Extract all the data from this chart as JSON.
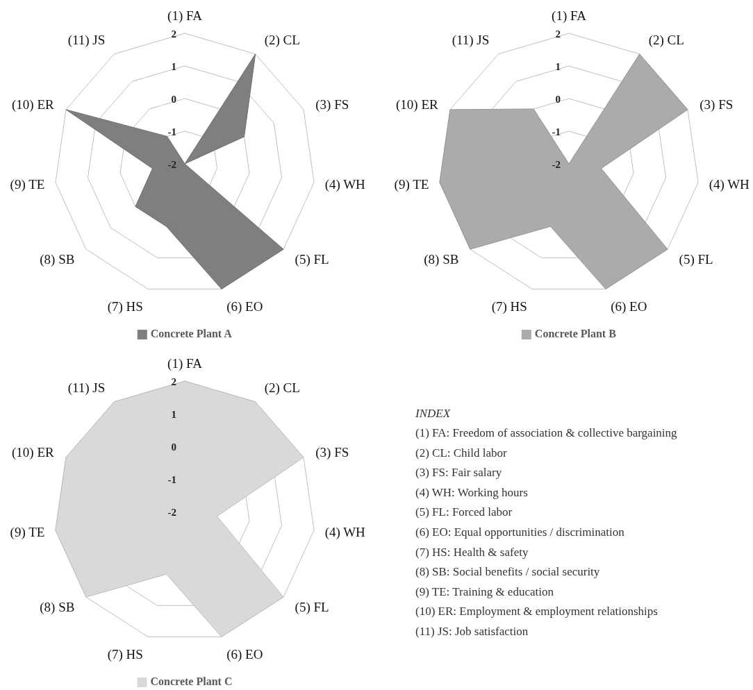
{
  "chart_data": [
    {
      "type": "radar",
      "categories": [
        "(1) FA",
        "(2) CL",
        "(3) FS",
        "(4) WH",
        "(5) FL",
        "(6) EO",
        "(7) HS",
        "(8) SB",
        "(9) TE",
        "(10) ER",
        "(11) JS"
      ],
      "series": [
        {
          "name": "Concrete Plant A",
          "color": "#7f7f7f",
          "values": [
            -2,
            2,
            0,
            -2,
            2,
            2,
            0,
            0,
            -1,
            2,
            -1
          ]
        }
      ],
      "ylim": [
        -2,
        2
      ],
      "yticks": [
        -2,
        -1,
        0,
        1,
        2
      ],
      "grid": true,
      "legend": "bottom"
    },
    {
      "type": "radar",
      "categories": [
        "(1) FA",
        "(2) CL",
        "(3) FS",
        "(4) WH",
        "(5) FL",
        "(6) EO",
        "(7) HS",
        "(8) SB",
        "(9) TE",
        "(10) ER",
        "(11) JS"
      ],
      "series": [
        {
          "name": "Concrete Plant B",
          "color": "#ababab",
          "values": [
            -2,
            2,
            2,
            -1,
            2,
            2,
            0,
            2,
            2,
            2,
            0
          ]
        }
      ],
      "ylim": [
        -2,
        2
      ],
      "yticks": [
        -2,
        -1,
        0,
        1,
        2
      ],
      "grid": true,
      "legend": "bottom"
    },
    {
      "type": "radar",
      "categories": [
        "(1) FA",
        "(2) CL",
        "(3) FS",
        "(4) WH",
        "(5) FL",
        "(6) EO",
        "(7) HS",
        "(8) SB",
        "(9) TE",
        "(10) ER",
        "(11) JS"
      ],
      "series": [
        {
          "name": "Concrete Plant C",
          "color": "#d9d9d9",
          "values": [
            2,
            2,
            2,
            -1,
            2,
            2,
            0,
            2,
            2,
            2,
            2
          ]
        }
      ],
      "ylim": [
        -2,
        2
      ],
      "yticks": [
        -2,
        -1,
        0,
        1,
        2
      ],
      "grid": true,
      "legend": "bottom"
    },
    {
      "type": "other",
      "title": "INDEX",
      "annotations": [
        "(1) FA: Freedom of association & collective bargaining",
        "(2) CL: Child labor",
        "(3) FS: Fair salary",
        "(4) WH: Working hours",
        "(5) FL: Forced labor",
        "(6) EO: Equal opportunities / discrimination",
        "(7) HS: Health & safety",
        "(8) SB: Social benefits / social security",
        "(9) TE: Training & education",
        "(10) ER: Employment & employment relationships",
        "(11) JS: Job satisfaction"
      ]
    }
  ]
}
